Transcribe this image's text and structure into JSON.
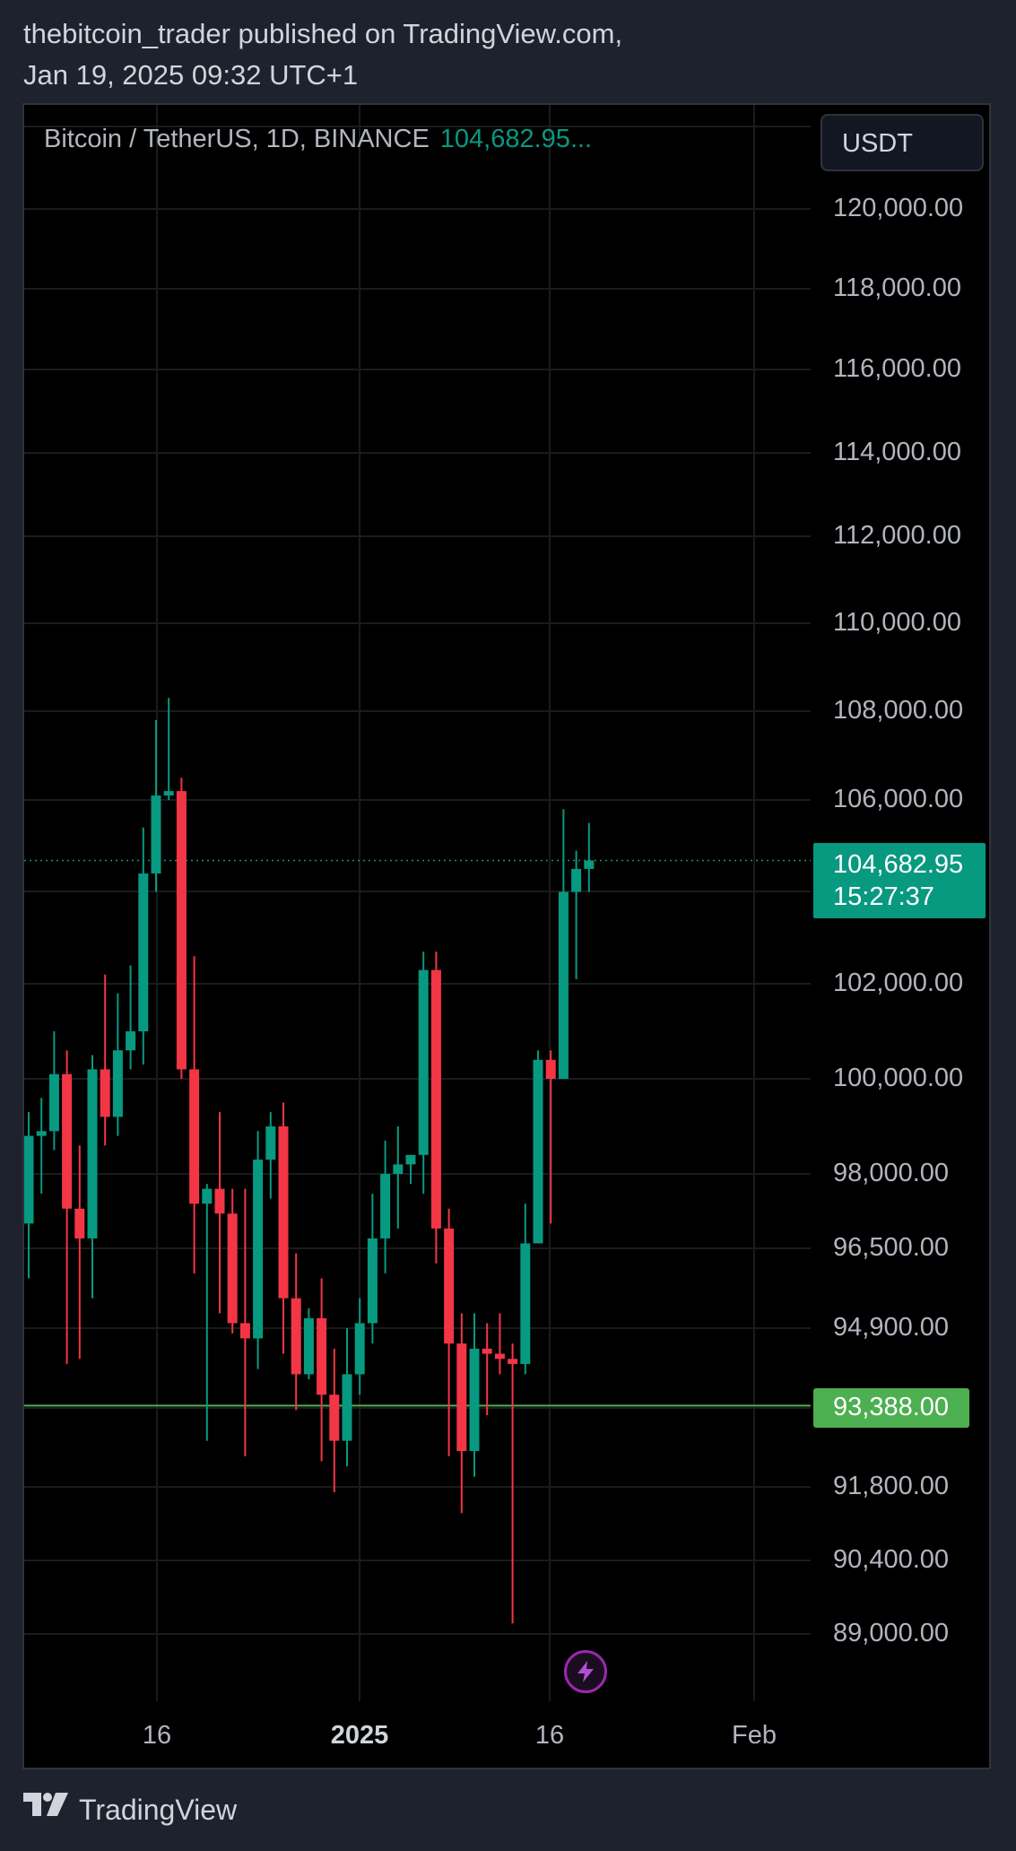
{
  "header": {
    "publisher_line": "thebitcoin_trader published on TradingView.com,",
    "date_line": "Jan 19, 2025 09:32 UTC+1"
  },
  "legend": {
    "symbol": "Bitcoin / TetherUS, 1D, BINANCE",
    "last_price": "104,682.95..."
  },
  "currency_button": "USDT",
  "price_tag": {
    "price": "104,682.95",
    "countdown": "15:27:37"
  },
  "level_tag": "93,388.00",
  "footer": {
    "brand": "TradingView"
  },
  "flash_icon": "lightning-icon",
  "colors": {
    "up": "#089981",
    "down": "#f23645",
    "level": "#4caf50",
    "accent_purple": "#9c27b0"
  },
  "chart_data": {
    "type": "candlestick",
    "title": "Bitcoin / TetherUS, 1D, BINANCE",
    "ylabel": "USDT",
    "grid": true,
    "y_ticks": [
      "120,000.00",
      "118,000.00",
      "116,000.00",
      "114,000.00",
      "112,000.00",
      "110,000.00",
      "108,000.00",
      "106,000.00",
      "102,000.00",
      "100,000.00",
      "98,000.00",
      "96,500.00",
      "94,900.00",
      "91,800.00",
      "90,400.00",
      "89,000.00"
    ],
    "x_ticks": [
      "16",
      "2025",
      "16",
      "Feb"
    ],
    "current_price": 104682.95,
    "horizontal_level": 93388.0,
    "candles": [
      {
        "o": 97000,
        "h": 99300,
        "l": 95900,
        "c": 98800
      },
      {
        "o": 98800,
        "h": 99600,
        "l": 97600,
        "c": 98900
      },
      {
        "o": 98900,
        "h": 101000,
        "l": 98500,
        "c": 100100
      },
      {
        "o": 100100,
        "h": 100600,
        "l": 94200,
        "c": 97300
      },
      {
        "o": 97300,
        "h": 98600,
        "l": 94300,
        "c": 96700
      },
      {
        "o": 96700,
        "h": 100500,
        "l": 95500,
        "c": 100200
      },
      {
        "o": 100200,
        "h": 102200,
        "l": 98600,
        "c": 99200
      },
      {
        "o": 99200,
        "h": 101800,
        "l": 98800,
        "c": 100600
      },
      {
        "o": 100600,
        "h": 102400,
        "l": 100200,
        "c": 101000
      },
      {
        "o": 101000,
        "h": 105400,
        "l": 100300,
        "c": 104400
      },
      {
        "o": 104400,
        "h": 107800,
        "l": 104000,
        "c": 106100
      },
      {
        "o": 106100,
        "h": 108300,
        "l": 106000,
        "c": 106200
      },
      {
        "o": 106200,
        "h": 106500,
        "l": 100000,
        "c": 100200
      },
      {
        "o": 100200,
        "h": 102600,
        "l": 96000,
        "c": 97400
      },
      {
        "o": 97400,
        "h": 97800,
        "l": 92700,
        "c": 97700
      },
      {
        "o": 97700,
        "h": 99300,
        "l": 95200,
        "c": 97200
      },
      {
        "o": 97200,
        "h": 97700,
        "l": 94800,
        "c": 95000
      },
      {
        "o": 95000,
        "h": 97700,
        "l": 92400,
        "c": 94700
      },
      {
        "o": 94700,
        "h": 98900,
        "l": 94100,
        "c": 98300
      },
      {
        "o": 98300,
        "h": 99300,
        "l": 97500,
        "c": 99000
      },
      {
        "o": 99000,
        "h": 99500,
        "l": 94400,
        "c": 95500
      },
      {
        "o": 95500,
        "h": 96400,
        "l": 93300,
        "c": 94000
      },
      {
        "o": 94000,
        "h": 95300,
        "l": 93900,
        "c": 95100
      },
      {
        "o": 95100,
        "h": 95900,
        "l": 92300,
        "c": 93600
      },
      {
        "o": 93600,
        "h": 94500,
        "l": 91700,
        "c": 92700
      },
      {
        "o": 92700,
        "h": 94900,
        "l": 92200,
        "c": 94000
      },
      {
        "o": 94000,
        "h": 95500,
        "l": 93600,
        "c": 95000
      },
      {
        "o": 95000,
        "h": 97600,
        "l": 94600,
        "c": 96700
      },
      {
        "o": 96700,
        "h": 98700,
        "l": 96000,
        "c": 98000
      },
      {
        "o": 98000,
        "h": 99000,
        "l": 96900,
        "c": 98200
      },
      {
        "o": 98200,
        "h": 98400,
        "l": 97800,
        "c": 98400
      },
      {
        "o": 98400,
        "h": 102700,
        "l": 97600,
        "c": 102300
      },
      {
        "o": 102300,
        "h": 102700,
        "l": 96200,
        "c": 96900
      },
      {
        "o": 96900,
        "h": 97300,
        "l": 92400,
        "c": 94600
      },
      {
        "o": 94600,
        "h": 95200,
        "l": 91300,
        "c": 92500
      },
      {
        "o": 92500,
        "h": 95200,
        "l": 92000,
        "c": 94500
      },
      {
        "o": 94500,
        "h": 95000,
        "l": 93200,
        "c": 94400
      },
      {
        "o": 94400,
        "h": 95200,
        "l": 94000,
        "c": 94300
      },
      {
        "o": 94300,
        "h": 94600,
        "l": 89200,
        "c": 94200
      },
      {
        "o": 94200,
        "h": 97400,
        "l": 94000,
        "c": 96600
      },
      {
        "o": 96600,
        "h": 100600,
        "l": 96600,
        "c": 100400
      },
      {
        "o": 100400,
        "h": 100600,
        "l": 97000,
        "c": 100000
      },
      {
        "o": 100000,
        "h": 105800,
        "l": 100000,
        "c": 104000
      },
      {
        "o": 104000,
        "h": 104900,
        "l": 102100,
        "c": 104500
      },
      {
        "o": 104500,
        "h": 105500,
        "l": 104000,
        "c": 104683
      }
    ]
  }
}
